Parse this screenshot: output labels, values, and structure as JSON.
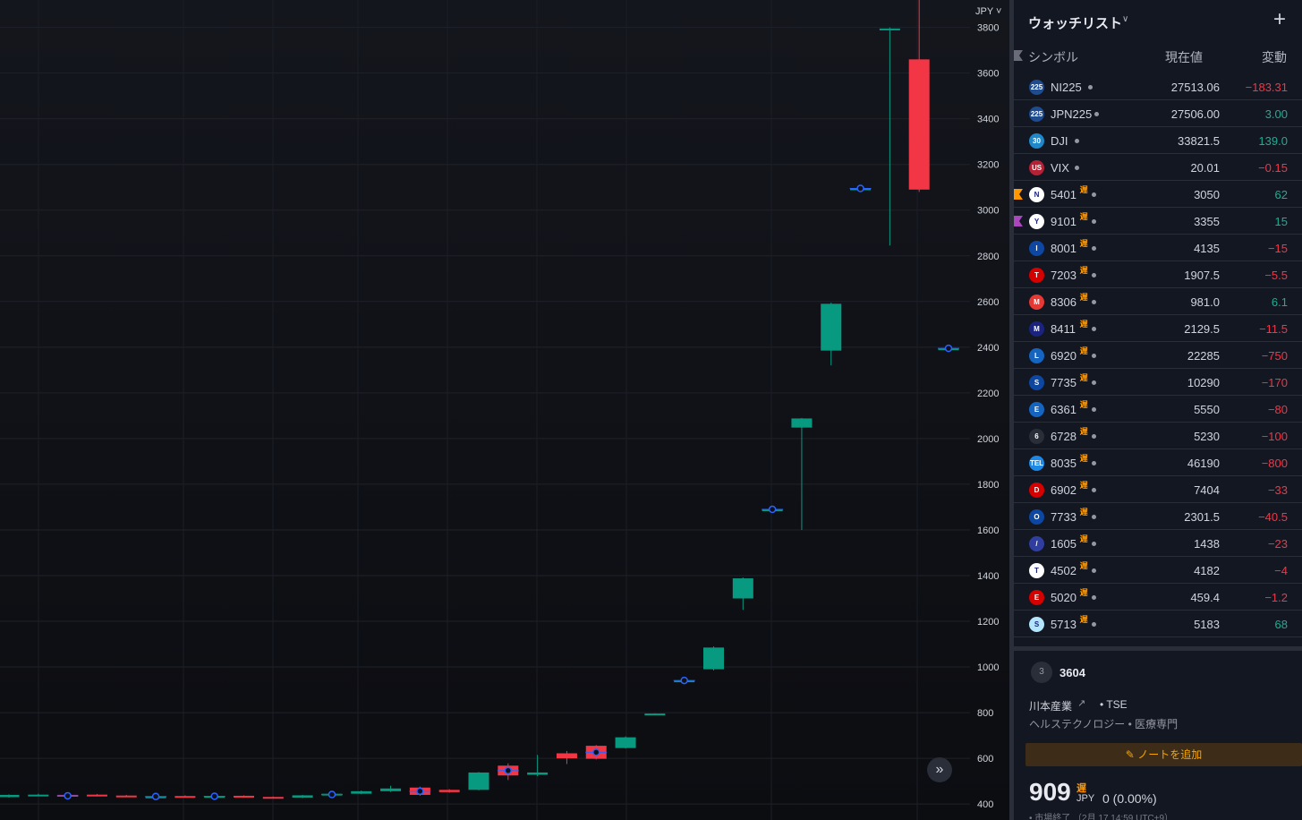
{
  "chart": {
    "currency_label": "JPY",
    "scroll_icon": "double-chevron-right-icon",
    "up_color": "#089981",
    "down_color": "#f23645",
    "event_color": "#2962ff"
  },
  "chart_data": {
    "type": "candlestick",
    "ylim": [
      330,
      3920
    ],
    "y_ticks": [
      400,
      600,
      800,
      1000,
      1200,
      1400,
      1600,
      1800,
      2000,
      2200,
      2400,
      2600,
      2800,
      3000,
      3200,
      3400,
      3600,
      3800
    ],
    "candles": [
      {
        "o": 430,
        "c": 440,
        "h": 442,
        "l": 428
      },
      {
        "o": 437,
        "c": 441,
        "h": 445,
        "l": 434
      },
      {
        "o": 440,
        "c": 432,
        "h": 443,
        "l": 430
      },
      {
        "o": 441,
        "c": 436,
        "h": 444,
        "l": 433
      },
      {
        "o": 437,
        "c": 432,
        "h": 440,
        "l": 430
      },
      {
        "o": 433,
        "c": 433,
        "h": 436,
        "l": 431
      },
      {
        "o": 435,
        "c": 431,
        "h": 438,
        "l": 430
      },
      {
        "o": 433,
        "c": 435,
        "h": 437,
        "l": 431
      },
      {
        "o": 436,
        "c": 430,
        "h": 438,
        "l": 428
      },
      {
        "o": 431,
        "c": 427,
        "h": 433,
        "l": 425
      },
      {
        "o": 428,
        "c": 438,
        "h": 440,
        "l": 426
      },
      {
        "o": 438,
        "c": 445,
        "h": 449,
        "l": 436
      },
      {
        "o": 445,
        "c": 456,
        "h": 459,
        "l": 443
      },
      {
        "o": 456,
        "c": 468,
        "h": 480,
        "l": 453
      },
      {
        "o": 472,
        "c": 440,
        "h": 476,
        "l": 436
      },
      {
        "o": 462,
        "c": 452,
        "h": 465,
        "l": 449
      },
      {
        "o": 462,
        "c": 538,
        "h": 540,
        "l": 460
      },
      {
        "o": 568,
        "c": 525,
        "h": 578,
        "l": 505
      },
      {
        "o": 528,
        "c": 538,
        "h": 615,
        "l": 522
      },
      {
        "o": 622,
        "c": 600,
        "h": 632,
        "l": 575
      },
      {
        "o": 655,
        "c": 598,
        "h": 658,
        "l": 595
      },
      {
        "o": 645,
        "c": 692,
        "h": 696,
        "l": 643
      },
      {
        "o": 792,
        "c": 796,
        "h": 797,
        "l": 790
      },
      {
        "o": 941,
        "c": 941,
        "h": 944,
        "l": 938
      },
      {
        "o": 990,
        "c": 1085,
        "h": 1090,
        "l": 985
      },
      {
        "o": 1300,
        "c": 1388,
        "h": 1392,
        "l": 1250
      },
      {
        "o": 1690,
        "c": 1690,
        "h": 1693,
        "l": 1687
      },
      {
        "o": 2048,
        "c": 2088,
        "h": 2090,
        "l": 1600
      },
      {
        "o": 2385,
        "c": 2590,
        "h": 2595,
        "l": 2320
      },
      {
        "o": 3095,
        "c": 3095,
        "h": 3098,
        "l": 3092
      },
      {
        "o": 3795,
        "c": 3795,
        "h": 3800,
        "l": 2845
      },
      {
        "o": 3660,
        "c": 3090,
        "h": 3990,
        "l": 3080
      },
      {
        "o": 2395,
        "c": 2395,
        "h": 2398,
        "l": 2392
      }
    ],
    "event_markers": [
      2,
      5,
      7,
      11,
      14,
      17,
      20,
      23,
      26,
      29,
      32
    ]
  },
  "watchlist": {
    "title": "ウォッチリスト",
    "chevron_icon": "chevron-down-icon",
    "add_icon": "plus-icon",
    "columns": {
      "symbol": "シンボル",
      "price": "現在値",
      "change": "変動"
    },
    "delay_mark": "遅",
    "rows": [
      {
        "symbol": "NI225",
        "price": "27513.06",
        "change": "−183.31",
        "dir": "down",
        "logo_text": "225",
        "logo_color": "#1e4c8f",
        "delayed": false,
        "flag": ""
      },
      {
        "symbol": "JPN225",
        "price": "27506.00",
        "change": "3.00",
        "dir": "up",
        "logo_text": "225",
        "logo_color": "#1e4c8f",
        "delayed": false,
        "flag": ""
      },
      {
        "symbol": "DJI",
        "price": "33821.5",
        "change": "139.0",
        "dir": "up",
        "logo_text": "30",
        "logo_color": "#1e88c8",
        "delayed": false,
        "flag": ""
      },
      {
        "symbol": "VIX",
        "price": "20.01",
        "change": "−0.15",
        "dir": "down",
        "logo_text": "US",
        "logo_color": "#b22234",
        "delayed": false,
        "flag": ""
      },
      {
        "symbol": "5401",
        "price": "3050",
        "change": "62",
        "dir": "up",
        "logo_text": "N",
        "logo_color": "#ffffff",
        "delayed": true,
        "flag": "#ff9800"
      },
      {
        "symbol": "9101",
        "price": "3355",
        "change": "15",
        "dir": "up",
        "logo_text": "Y",
        "logo_color": "#ffffff",
        "delayed": true,
        "flag": "#ab47bc"
      },
      {
        "symbol": "8001",
        "price": "4135",
        "change": "−15",
        "dir": "down",
        "logo_text": "I",
        "logo_color": "#0d47a1",
        "delayed": true,
        "flag": ""
      },
      {
        "symbol": "7203",
        "price": "1907.5",
        "change": "−5.5",
        "dir": "down",
        "logo_text": "T",
        "logo_color": "#d50000",
        "delayed": true,
        "flag": ""
      },
      {
        "symbol": "8306",
        "price": "981.0",
        "change": "6.1",
        "dir": "up",
        "logo_text": "M",
        "logo_color": "#e53935",
        "delayed": true,
        "flag": ""
      },
      {
        "symbol": "8411",
        "price": "2129.5",
        "change": "−11.5",
        "dir": "down",
        "logo_text": "M",
        "logo_color": "#1a237e",
        "delayed": true,
        "flag": ""
      },
      {
        "symbol": "6920",
        "price": "22285",
        "change": "−750",
        "dir": "down",
        "logo_text": "L",
        "logo_color": "#1565c0",
        "delayed": true,
        "flag": ""
      },
      {
        "symbol": "7735",
        "price": "10290",
        "change": "−170",
        "dir": "down",
        "logo_text": "S",
        "logo_color": "#0d47a1",
        "delayed": true,
        "flag": ""
      },
      {
        "symbol": "6361",
        "price": "5550",
        "change": "−80",
        "dir": "down",
        "logo_text": "E",
        "logo_color": "#1565c0",
        "delayed": true,
        "flag": ""
      },
      {
        "symbol": "6728",
        "price": "5230",
        "change": "−100",
        "dir": "down",
        "logo_text": "6",
        "logo_color": "#2a2e39",
        "delayed": true,
        "flag": ""
      },
      {
        "symbol": "8035",
        "price": "46190",
        "change": "−800",
        "dir": "down",
        "logo_text": "TEL",
        "logo_color": "#1e88e5",
        "delayed": true,
        "flag": ""
      },
      {
        "symbol": "6902",
        "price": "7404",
        "change": "−33",
        "dir": "down",
        "logo_text": "D",
        "logo_color": "#d50000",
        "delayed": true,
        "flag": ""
      },
      {
        "symbol": "7733",
        "price": "2301.5",
        "change": "−40.5",
        "dir": "down",
        "logo_text": "O",
        "logo_color": "#0d47a1",
        "delayed": true,
        "flag": ""
      },
      {
        "symbol": "1605",
        "price": "1438",
        "change": "−23",
        "dir": "down",
        "logo_text": "/",
        "logo_color": "#303f9f",
        "delayed": true,
        "flag": ""
      },
      {
        "symbol": "4502",
        "price": "4182",
        "change": "−4",
        "dir": "down",
        "logo_text": "T",
        "logo_color": "#ffffff",
        "delayed": true,
        "flag": ""
      },
      {
        "symbol": "5020",
        "price": "459.4",
        "change": "−1.2",
        "dir": "down",
        "logo_text": "E",
        "logo_color": "#d50000",
        "delayed": true,
        "flag": ""
      },
      {
        "symbol": "5713",
        "price": "5183",
        "change": "68",
        "dir": "up",
        "logo_text": "S",
        "logo_color": "#b3e5fc",
        "delayed": true,
        "flag": ""
      }
    ]
  },
  "detail": {
    "logo_text": "3",
    "symbol": "3604",
    "name": "川本産業",
    "external_icon": "external-link-icon",
    "exchange": "• TSE",
    "sector": "ヘルステクノロジー • 医療専門",
    "note_button": "ノートを追加",
    "note_icon": "edit-icon",
    "price": "909",
    "delay_mark": "遅",
    "currency": "JPY",
    "change": "0 (0.00%)",
    "status": "• 市場終了 （2月 17 14:59 UTC+9）"
  }
}
